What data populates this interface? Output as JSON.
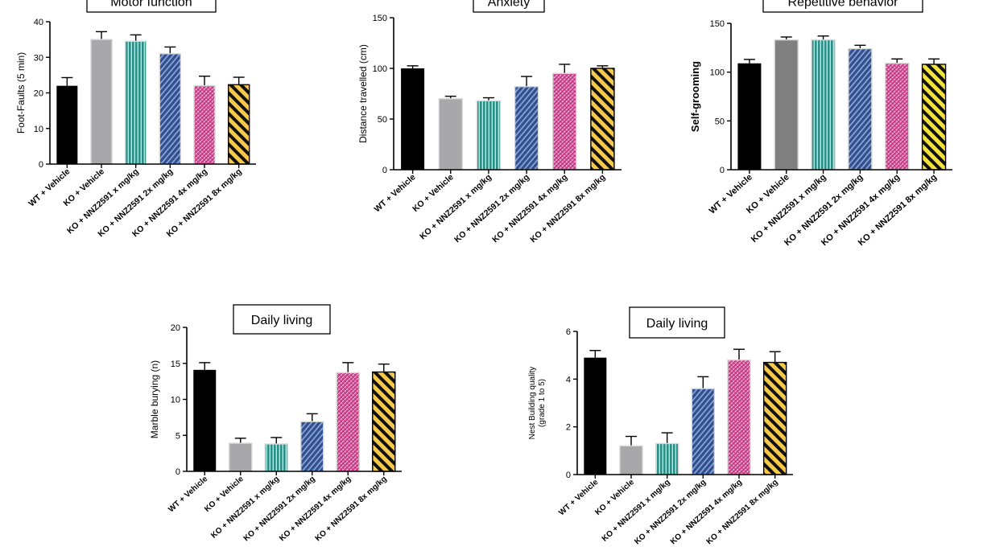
{
  "categories": [
    "WT + Vehicle",
    "KO + Vehicle",
    "KO + NNZ2591 x mg/kg",
    "KO + NNZ2591 2x mg/kg",
    "KO + NNZ2591 4x mg/kg",
    "KO + NNZ2591 8x mg/kg"
  ],
  "colors": {
    "wt": "#000000",
    "ko": "#a8a8aa",
    "ko_dark": "#808080",
    "teal": "#2a8f86",
    "blue": "#3a5f9e",
    "pink": "#d9479a",
    "yellow": "#f7c94a",
    "yellow_bright": "#f2e23a"
  },
  "chart_data": [
    {
      "type": "bar",
      "title": "Motor function",
      "ylabel": "Foot-Faults (5 min)",
      "ylim": [
        0,
        40
      ],
      "yticks": [
        0,
        10,
        20,
        30,
        40
      ],
      "values": [
        22,
        35,
        34.5,
        31,
        22,
        22.3
      ],
      "errors": [
        2.3,
        2.2,
        1.8,
        1.9,
        2.7,
        2.1
      ]
    },
    {
      "type": "bar",
      "title": "Anxiety",
      "ylabel": "Distance travelled (cm)",
      "ylim": [
        0,
        150
      ],
      "yticks": [
        0,
        50,
        100,
        150
      ],
      "values": [
        100,
        70,
        68,
        82,
        95,
        100
      ],
      "errors": [
        2.5,
        2.5,
        3,
        10,
        9,
        2.5
      ]
    },
    {
      "type": "bar",
      "title": "Repetitive behavior",
      "ylabel": "Self-grooming",
      "ylim": [
        0,
        150
      ],
      "yticks": [
        0,
        50,
        100,
        150
      ],
      "values": [
        109,
        133,
        133,
        124,
        109,
        108
      ],
      "errors": [
        4,
        3,
        4,
        3.5,
        4.5,
        5.5
      ]
    },
    {
      "type": "bar",
      "title": "Daily living",
      "ylabel": "Marble burying (n)",
      "ylim": [
        0,
        20
      ],
      "yticks": [
        0,
        5,
        10,
        15,
        20
      ],
      "values": [
        14.1,
        3.9,
        3.8,
        6.9,
        13.7,
        13.8
      ],
      "errors": [
        1,
        0.7,
        0.9,
        1.1,
        1.4,
        1.1
      ]
    },
    {
      "type": "bar",
      "title": "Daily living",
      "ylabel": "Nest Building quality (grade 1 to 5)",
      "ylim": [
        0,
        6
      ],
      "yticks": [
        0,
        2,
        4,
        6
      ],
      "values": [
        4.9,
        1.2,
        1.3,
        3.6,
        4.8,
        4.7
      ],
      "errors": [
        0.3,
        0.4,
        0.45,
        0.5,
        0.45,
        0.45
      ]
    }
  ]
}
